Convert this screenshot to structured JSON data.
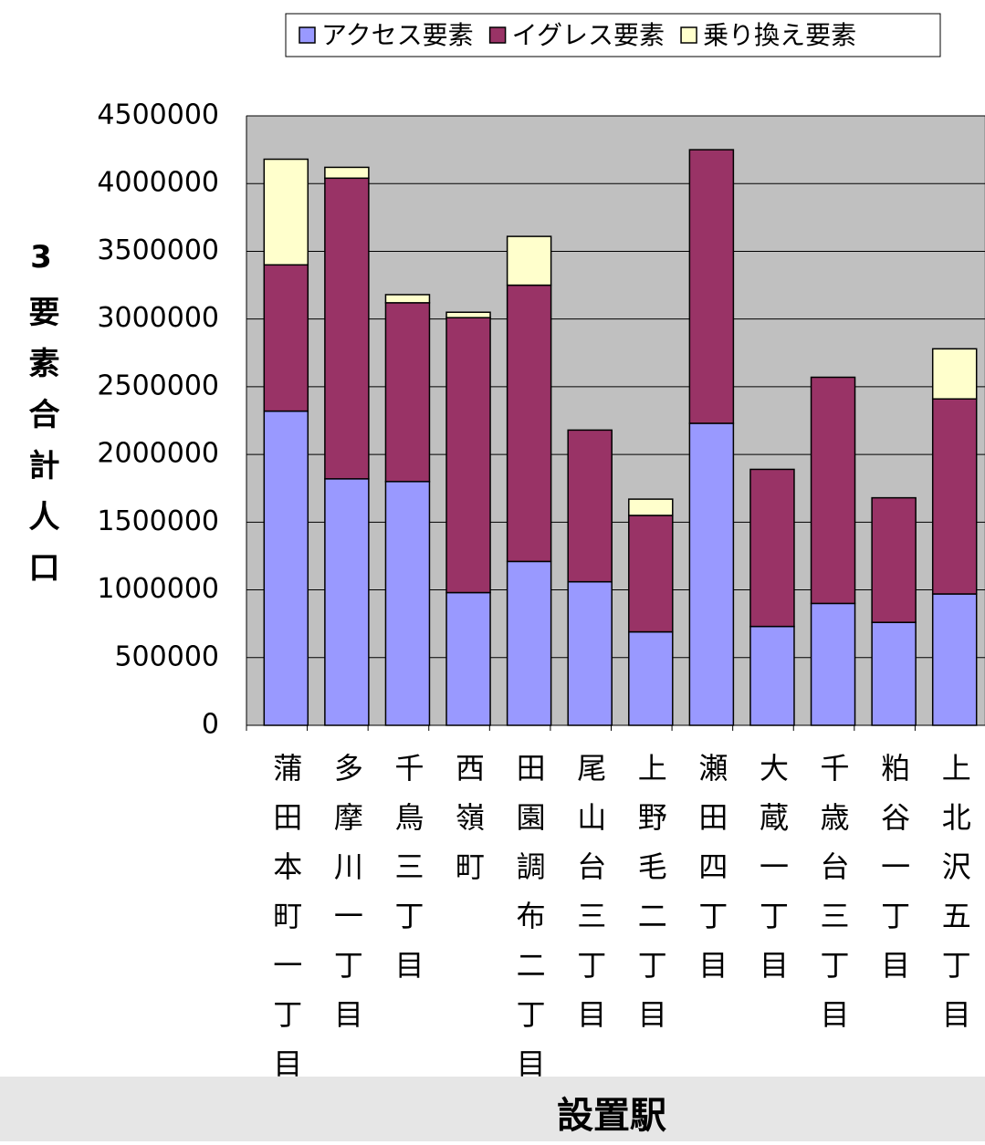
{
  "chart_data": {
    "type": "stacked_bar",
    "ylabel": "3要素合計人口",
    "xlabel": "設置駅",
    "categories": [
      "蒲田本町一丁目",
      "多摩川一丁目",
      "千鳥三丁目",
      "西嶺町",
      "田園調布二丁目",
      "尾山台三丁目",
      "上野毛二丁目",
      "瀬田四丁目",
      "大蔵一丁目",
      "千歳台三丁目",
      "粕谷一丁目",
      "上北沢五丁目"
    ],
    "series": [
      {
        "name": "アクセス要素",
        "color": "#9999ff",
        "values": [
          2320000,
          1820000,
          1800000,
          980000,
          1210000,
          1060000,
          690000,
          2230000,
          730000,
          900000,
          760000,
          970000
        ]
      },
      {
        "name": "イグレス要素",
        "color": "#993366",
        "values": [
          1080000,
          2220000,
          1320000,
          2030000,
          2040000,
          1120000,
          860000,
          2020000,
          1160000,
          1670000,
          920000,
          1440000
        ]
      },
      {
        "name": "乗り換え要素",
        "color": "#ffffcc",
        "values": [
          780000,
          80000,
          60000,
          40000,
          360000,
          0,
          120000,
          0,
          0,
          0,
          0,
          370000
        ]
      }
    ],
    "ylim": [
      0,
      4500000
    ],
    "yticks": [
      0,
      500000,
      1000000,
      1500000,
      2000000,
      2500000,
      3000000,
      3500000,
      4000000,
      4500000
    ]
  }
}
